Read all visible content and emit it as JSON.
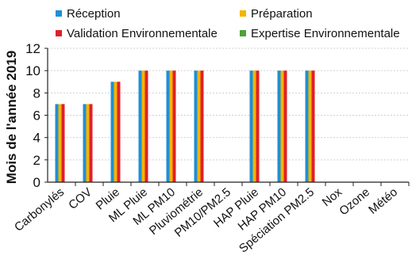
{
  "chart_data": {
    "type": "bar",
    "title": "",
    "xlabel": "",
    "ylabel": "Mois de l'année 2019",
    "ylim": [
      0,
      12
    ],
    "yticks": [
      0,
      2,
      4,
      6,
      8,
      10,
      12
    ],
    "grid": true,
    "legend_position": "top",
    "categories": [
      "Carbonylés",
      "COV",
      "Pluie",
      "ML Pluie",
      "ML PM10",
      "Pluviométrie",
      "PM10/PM2.5",
      "HAP Pluie",
      "HAP PM10",
      "Spéciation PM2.5",
      "Nox",
      "Ozone",
      "Météo"
    ],
    "series": [
      {
        "name": "Réception",
        "color": "#1f8fd6",
        "values": [
          7,
          7,
          9,
          10,
          10,
          10,
          0,
          10,
          10,
          10,
          0,
          0,
          0
        ]
      },
      {
        "name": "Préparation",
        "color": "#f4b400",
        "values": [
          7,
          7,
          9,
          10,
          10,
          10,
          0,
          10,
          10,
          10,
          0,
          0,
          0
        ]
      },
      {
        "name": "Validation Environnementale",
        "color": "#e0202a",
        "values": [
          7,
          7,
          9,
          10,
          10,
          10,
          0,
          10,
          10,
          10,
          0,
          0,
          0
        ]
      },
      {
        "name": "Expertise Environnementale",
        "color": "#4fa33a",
        "values": [
          0,
          0,
          0,
          0,
          0,
          0,
          0,
          0,
          0,
          0,
          0,
          0,
          0
        ]
      }
    ]
  }
}
